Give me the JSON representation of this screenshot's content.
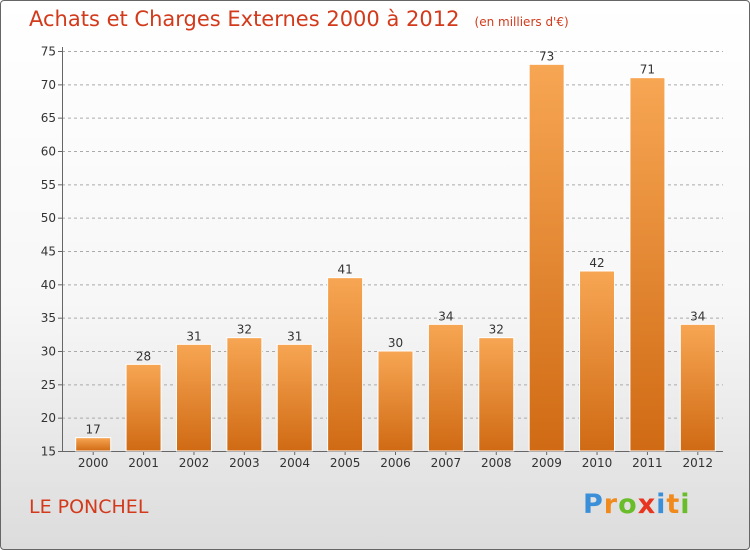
{
  "header": {
    "title": "Achats et Charges Externes 2000 à 2012",
    "subtitle": "(en milliers d'€)"
  },
  "footer": {
    "place_label": "LE PONCHEL",
    "logo_letters": [
      "P",
      "r",
      "o",
      "x",
      "i",
      "t",
      "i"
    ],
    "logo_colors": [
      "#3b8fd8",
      "#f08a1c",
      "#6abd2a",
      "#e8351f",
      "#3b8fd8",
      "#f08a1c",
      "#6abd2a"
    ]
  },
  "colors": {
    "bar_light": "#f7a653",
    "bar_dark": "#d06a14",
    "title": "#d23a1b",
    "grid": "#aaaaaa"
  },
  "chart_data": {
    "type": "bar",
    "categories": [
      "2000",
      "2001",
      "2002",
      "2003",
      "2004",
      "2005",
      "2006",
      "2007",
      "2008",
      "2009",
      "2010",
      "2011",
      "2012"
    ],
    "values": [
      17,
      28,
      31,
      32,
      31,
      41,
      30,
      34,
      32,
      73,
      42,
      71,
      34
    ],
    "title": "Achats et Charges Externes 2000 à 2012",
    "ylim": [
      15,
      75
    ],
    "yticks": [
      15,
      20,
      25,
      30,
      35,
      40,
      45,
      50,
      55,
      60,
      65,
      70,
      75
    ],
    "grid": true,
    "data_labels": true
  }
}
